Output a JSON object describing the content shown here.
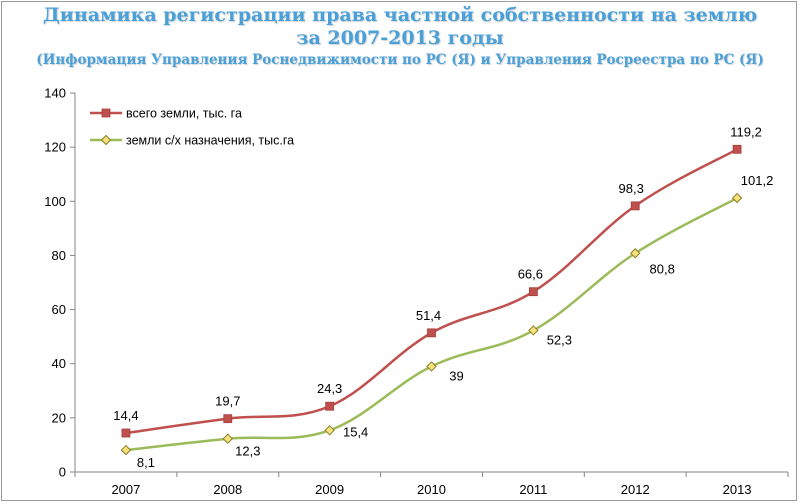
{
  "chart_data": {
    "type": "line",
    "title": "Динамика регистрации права частной собственности на землю",
    "title_line2": "за 2007-2013 годы",
    "subtitle": "(Информация Управления Роснедвижимости по РС (Я) и Управления Росреестра по РС (Я)",
    "xlabel": "",
    "ylabel": "",
    "x": [
      "2007",
      "2008",
      "2009",
      "2010",
      "2011",
      "2012",
      "2013"
    ],
    "ylim": [
      0,
      140
    ],
    "yticks": [
      "0",
      "20",
      "40",
      "60",
      "80",
      "100",
      "120",
      "140"
    ],
    "grid": false,
    "legend_position": "top-left",
    "series": [
      {
        "name": "всего земли, тыс. га",
        "values": [
          14.4,
          19.7,
          24.3,
          51.4,
          66.6,
          98.3,
          119.2
        ],
        "labels": [
          "14,4",
          "19,7",
          "24,3",
          "51,4",
          "66,6",
          "98,3",
          "119,2"
        ],
        "color": "#c0504d",
        "marker": "square"
      },
      {
        "name": "земли с/х назначения, тыс.га",
        "values": [
          8.1,
          12.3,
          15.4,
          39,
          52.3,
          80.8,
          101.2
        ],
        "labels": [
          "8,1",
          "12,3",
          "15,4",
          "39",
          "52,3",
          "80,8",
          "101,2"
        ],
        "color": "#9bbb59",
        "marker": "diamond"
      }
    ]
  }
}
